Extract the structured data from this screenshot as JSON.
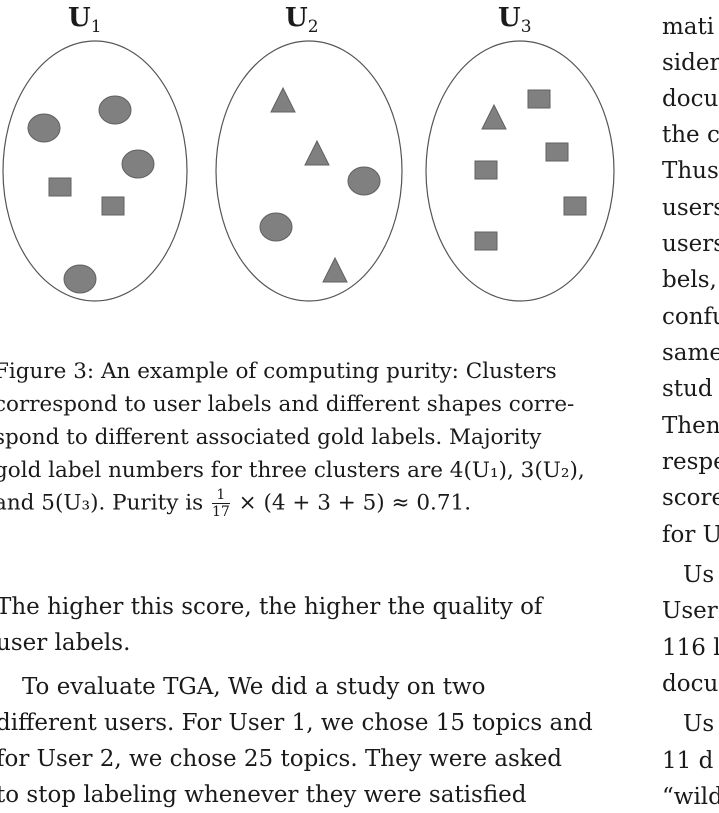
{
  "figure": {
    "clusters": [
      {
        "label": "U",
        "sub": "1"
      },
      {
        "label": "U",
        "sub": "2"
      },
      {
        "label": "U",
        "sub": "3"
      }
    ],
    "caption": {
      "line1": "Figure 3: An example of computing purity: Clusters",
      "line2": "correspond to user labels and different shapes corre-",
      "line3": "spond to different associated gold labels. Majority",
      "line4": "gold label numbers for three clusters are 4(U₁), 3(U₂),",
      "line5_pre": "and 5(U₃). Purity is",
      "frac_num": "1",
      "frac_den": "17",
      "line5_post": "× (4 + 3 + 5) ≈ 0.71."
    }
  },
  "body": {
    "p1_line1": "The higher this score, the higher the quality of",
    "p1_line2": "user labels.",
    "p2_line1": "To evaluate TGA, We did a study on two",
    "p2_line2": "different users. For User 1, we chose 15 topics and",
    "p2_line3": "for User 2, we chose 25 topics. They were asked",
    "p2_line4": "to stop labeling whenever they were satisfied"
  },
  "right_column": {
    "lines": [
      "mati",
      "sider",
      "docu",
      "the c",
      "Thus",
      "users",
      "users",
      "bels,",
      "confu",
      "same",
      "stud",
      "Then",
      "respe",
      "score",
      "for U",
      "Us",
      "User",
      "116 l",
      "docu",
      "Us",
      "11 d",
      "“wild"
    ]
  }
}
